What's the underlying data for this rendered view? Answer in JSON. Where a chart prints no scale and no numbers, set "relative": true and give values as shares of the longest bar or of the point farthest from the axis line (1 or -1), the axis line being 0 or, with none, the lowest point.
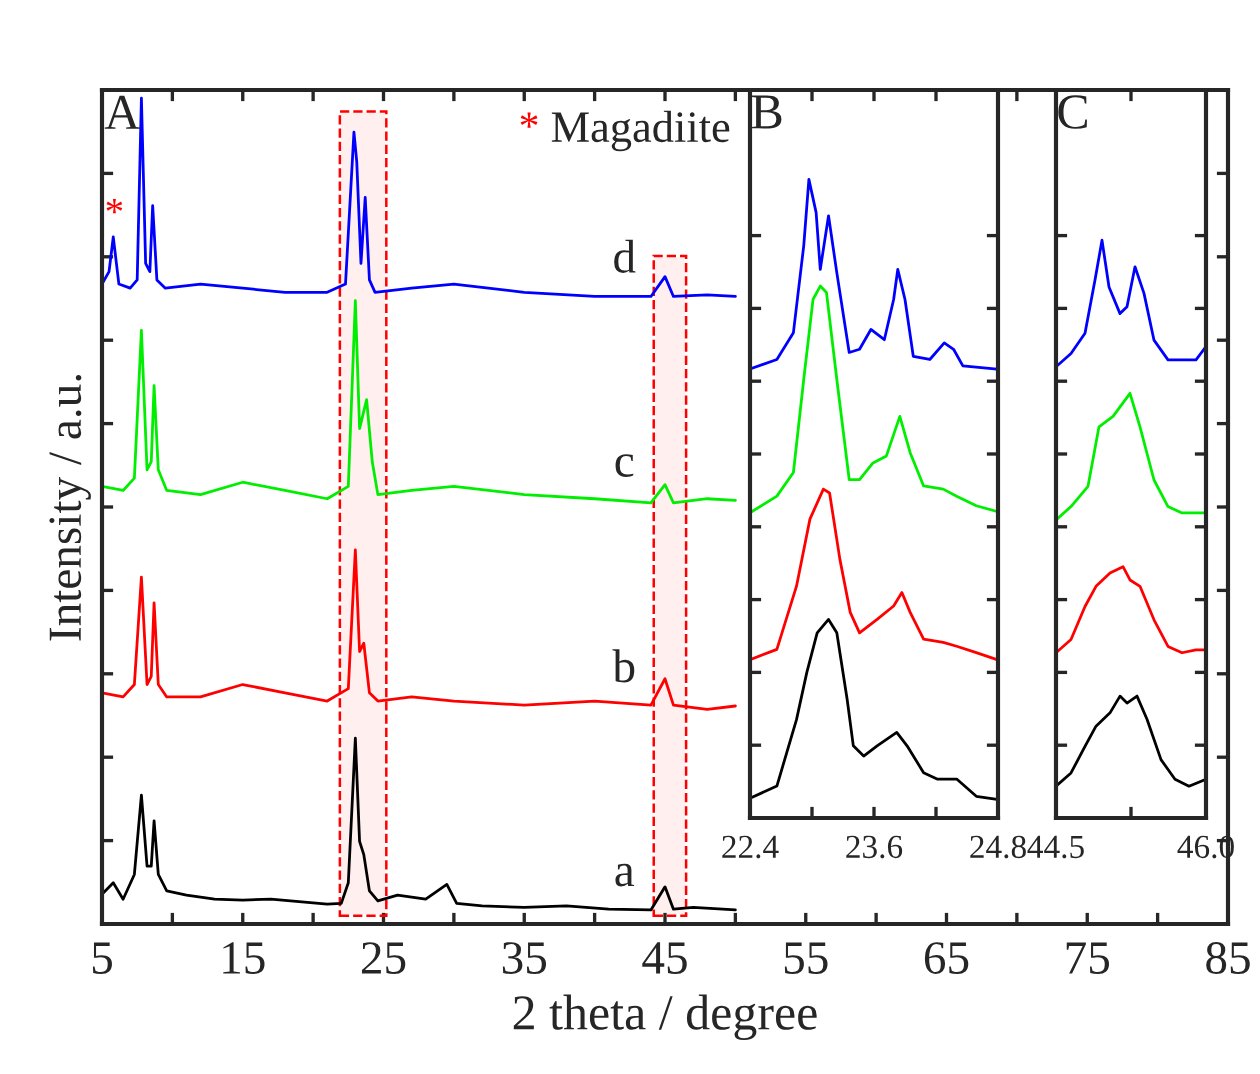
{
  "chart_data": [
    {
      "type": "line",
      "relative": true,
      "xlabel": "2 theta / degree",
      "ylabel": "Intensity / a.u.",
      "xlim": [
        5,
        85
      ],
      "xticks": [
        5,
        {
          "value": 10,
          "label": null
        },
        15,
        {
          "value": 20,
          "label": null
        },
        25,
        {
          "value": 30,
          "label": null
        },
        35,
        {
          "value": 40,
          "label": null
        },
        45,
        {
          "value": 50,
          "label": null
        },
        55,
        {
          "value": 60,
          "label": null
        },
        65,
        {
          "value": 70,
          "label": null
        },
        75,
        {
          "value": 80,
          "label": null
        },
        85
      ],
      "tick_labels": "x",
      "grid": false,
      "annotations": [
        "A",
        "* Magadiite",
        "*"
      ],
      "bands": [
        {
          "axis": "x",
          "from": 21.9,
          "to": 25.2,
          "color": "#ff0000"
        },
        {
          "axis": "x",
          "from": 44.2,
          "to": 46.5,
          "color": "#ff0000"
        }
      ],
      "series": [
        {
          "name": "a",
          "color": "#000000",
          "x": [
            5,
            5.8,
            6.5,
            7.3,
            7.8,
            8.2,
            8.5,
            8.7,
            9.0,
            9.6,
            11,
            13,
            15,
            17,
            19,
            21,
            22,
            22.5,
            23.0,
            23.3,
            23.6,
            24.0,
            24.6,
            26,
            28,
            29.5,
            30.2,
            32,
            35,
            38,
            41,
            44,
            45,
            45.6,
            47,
            50
          ],
          "values": [
            0.036,
            0.05,
            0.03,
            0.06,
            0.156,
            0.07,
            0.07,
            0.125,
            0.06,
            0.04,
            0.035,
            0.03,
            0.029,
            0.03,
            0.027,
            0.024,
            0.025,
            0.05,
            0.225,
            0.1,
            0.084,
            0.04,
            0.028,
            0.035,
            0.03,
            0.048,
            0.025,
            0.022,
            0.02,
            0.022,
            0.018,
            0.017,
            0.045,
            0.018,
            0.02,
            0.017
          ]
        },
        {
          "name": "b",
          "color": "#ff0000",
          "x": [
            5,
            6.5,
            7.3,
            7.8,
            8.2,
            8.5,
            8.7,
            9.0,
            9.6,
            12,
            15,
            18,
            21,
            22.5,
            23.0,
            23.3,
            23.6,
            24.0,
            24.6,
            27,
            30,
            35,
            40,
            44,
            45,
            45.6,
            48,
            50
          ],
          "values": [
            0.28,
            0.275,
            0.29,
            0.42,
            0.29,
            0.3,
            0.389,
            0.29,
            0.275,
            0.275,
            0.29,
            0.28,
            0.27,
            0.285,
            0.453,
            0.33,
            0.34,
            0.28,
            0.27,
            0.275,
            0.27,
            0.265,
            0.27,
            0.265,
            0.297,
            0.265,
            0.26,
            0.264
          ]
        },
        {
          "name": "c",
          "color": "#00ee00",
          "x": [
            5,
            6.5,
            7.3,
            7.8,
            8.2,
            8.5,
            8.7,
            9.0,
            9.6,
            12,
            15,
            18,
            21,
            22.5,
            23.0,
            23.3,
            23.8,
            24.2,
            24.6,
            27,
            30,
            35,
            40,
            44,
            45,
            45.6,
            48,
            50
          ],
          "values": [
            0.53,
            0.525,
            0.54,
            0.719,
            0.55,
            0.56,
            0.652,
            0.55,
            0.525,
            0.52,
            0.535,
            0.525,
            0.515,
            0.53,
            0.755,
            0.6,
            0.635,
            0.56,
            0.52,
            0.525,
            0.53,
            0.52,
            0.515,
            0.51,
            0.532,
            0.51,
            0.515,
            0.513
          ]
        },
        {
          "name": "d",
          "color": "#0000ff",
          "x": [
            5,
            5.5,
            5.8,
            6.2,
            7.0,
            7.5,
            7.8,
            8.1,
            8.4,
            8.6,
            8.9,
            9.5,
            12,
            15,
            18,
            21,
            22.3,
            22.9,
            23.1,
            23.4,
            23.7,
            24.0,
            24.4,
            27,
            30,
            35,
            40,
            44,
            45,
            45.6,
            48,
            50
          ],
          "values": [
            0.775,
            0.79,
            0.832,
            0.775,
            0.77,
            0.78,
            1.0,
            0.8,
            0.79,
            0.87,
            0.78,
            0.77,
            0.775,
            0.77,
            0.765,
            0.765,
            0.775,
            0.959,
            0.923,
            0.8,
            0.88,
            0.78,
            0.765,
            0.77,
            0.775,
            0.765,
            0.76,
            0.76,
            0.784,
            0.76,
            0.762,
            0.76
          ]
        }
      ]
    },
    {
      "type": "line",
      "relative": true,
      "xlim": [
        22.4,
        24.8
      ],
      "xticks": [
        22.4,
        {
          "value": 23.0,
          "label": null
        },
        23.6,
        {
          "value": 24.2,
          "label": null
        },
        24.8
      ],
      "tick_labels": "x",
      "grid": false,
      "annotations": [
        "B"
      ],
      "series": [
        {
          "color": "#000000",
          "x": [
            22.4,
            22.66,
            22.85,
            22.95,
            23.05,
            23.16,
            23.24,
            23.34,
            23.4,
            23.5,
            23.63,
            23.82,
            23.92,
            24.08,
            24.21,
            24.4,
            24.59,
            24.79
          ],
          "values": [
            0.031,
            0.05,
            0.154,
            0.228,
            0.29,
            0.311,
            0.29,
            0.186,
            0.113,
            0.097,
            0.113,
            0.134,
            0.113,
            0.071,
            0.061,
            0.061,
            0.034,
            0.029
          ]
        },
        {
          "color": "#ff0000",
          "x": [
            22.4,
            22.66,
            22.85,
            22.98,
            23.11,
            23.17,
            23.27,
            23.37,
            23.46,
            23.63,
            23.79,
            23.87,
            23.95,
            24.08,
            24.27,
            24.4,
            24.59,
            24.79
          ],
          "values": [
            0.248,
            0.264,
            0.363,
            0.468,
            0.515,
            0.509,
            0.405,
            0.322,
            0.29,
            0.311,
            0.332,
            0.353,
            0.322,
            0.28,
            0.275,
            0.269,
            0.259,
            0.248
          ]
        },
        {
          "color": "#00ee00",
          "x": [
            22.4,
            22.66,
            22.82,
            22.92,
            23.01,
            23.08,
            23.14,
            23.24,
            23.36,
            23.46,
            23.59,
            23.72,
            23.85,
            23.95,
            24.08,
            24.27,
            24.4,
            24.59,
            24.79
          ],
          "values": [
            0.478,
            0.504,
            0.541,
            0.687,
            0.812,
            0.833,
            0.823,
            0.687,
            0.53,
            0.53,
            0.556,
            0.567,
            0.629,
            0.572,
            0.52,
            0.515,
            0.504,
            0.489,
            0.48
          ]
        },
        {
          "color": "#0000ff",
          "x": [
            22.4,
            22.66,
            22.82,
            22.92,
            22.97,
            23.04,
            23.08,
            23.16,
            23.24,
            23.36,
            23.46,
            23.57,
            23.7,
            23.79,
            23.83,
            23.9,
            23.98,
            24.14,
            24.28,
            24.37,
            24.46,
            24.79
          ],
          "values": [
            0.703,
            0.718,
            0.76,
            0.896,
            1.0,
            0.948,
            0.859,
            0.943,
            0.854,
            0.729,
            0.734,
            0.765,
            0.749,
            0.812,
            0.859,
            0.812,
            0.723,
            0.718,
            0.744,
            0.734,
            0.708,
            0.703
          ]
        }
      ]
    },
    {
      "type": "line",
      "relative": true,
      "xlim": [
        44.5,
        46.0
      ],
      "xticks": [
        44.5,
        {
          "value": 45.25,
          "label": null
        },
        {
          "value": 46.0,
          "label": "46.0"
        }
      ],
      "tick_labels": "x",
      "grid": false,
      "annotations": [
        "C"
      ],
      "series": [
        {
          "color": "#000000",
          "x": [
            44.5,
            44.65,
            44.79,
            44.9,
            45.04,
            45.14,
            45.21,
            45.31,
            45.41,
            45.55,
            45.69,
            45.83,
            46.0
          ],
          "values": [
            0.055,
            0.078,
            0.124,
            0.159,
            0.182,
            0.211,
            0.199,
            0.211,
            0.171,
            0.101,
            0.067,
            0.055,
            0.067
          ]
        },
        {
          "color": "#ff0000",
          "x": [
            44.5,
            44.65,
            44.79,
            44.9,
            45.04,
            45.17,
            45.24,
            45.34,
            45.48,
            45.62,
            45.76,
            45.9,
            46.0
          ],
          "values": [
            0.286,
            0.309,
            0.366,
            0.401,
            0.424,
            0.435,
            0.412,
            0.401,
            0.343,
            0.297,
            0.286,
            0.291,
            0.291
          ]
        },
        {
          "color": "#00ee00",
          "x": [
            44.5,
            44.65,
            44.82,
            44.93,
            45.07,
            45.24,
            45.34,
            45.48,
            45.62,
            45.76,
            45.9,
            46.0
          ],
          "values": [
            0.516,
            0.539,
            0.574,
            0.677,
            0.695,
            0.735,
            0.677,
            0.585,
            0.539,
            0.528,
            0.528,
            0.528
          ]
        },
        {
          "color": "#0000ff",
          "x": [
            44.5,
            44.65,
            44.79,
            44.89,
            44.96,
            45.03,
            45.14,
            45.21,
            45.29,
            45.38,
            45.48,
            45.62,
            45.76,
            45.9,
            46.0
          ],
          "values": [
            0.781,
            0.804,
            0.839,
            0.931,
            1.0,
            0.919,
            0.873,
            0.885,
            0.954,
            0.908,
            0.827,
            0.793,
            0.793,
            0.793,
            0.816
          ]
        }
      ]
    }
  ]
}
